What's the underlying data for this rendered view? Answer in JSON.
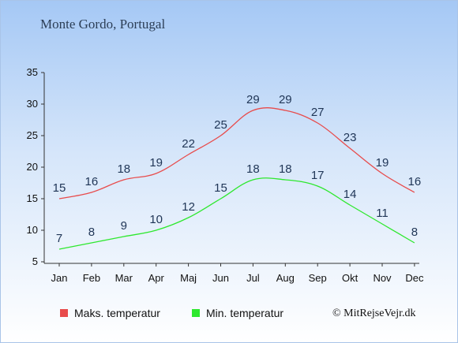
{
  "title": "Monte Gordo, Portugal",
  "copyright": "© MitRejseVejr.dk",
  "chart_data": {
    "type": "line",
    "categories": [
      "Jan",
      "Feb",
      "Mar",
      "Apr",
      "Maj",
      "Jun",
      "Jul",
      "Aug",
      "Sep",
      "Okt",
      "Nov",
      "Dec"
    ],
    "series": [
      {
        "name": "Maks. temperatur",
        "color": "#e84b4b",
        "values": [
          15,
          16,
          18,
          19,
          22,
          25,
          29,
          29,
          27,
          23,
          19,
          16
        ]
      },
      {
        "name": "Min. temperatur",
        "color": "#2ee82e",
        "values": [
          7,
          8,
          9,
          10,
          12,
          15,
          18,
          18,
          17,
          14,
          11,
          8
        ]
      }
    ],
    "yticks": [
      5,
      10,
      15,
      20,
      25,
      30,
      35
    ],
    "ylim": [
      5,
      35
    ],
    "grid": false,
    "legend": "bottom"
  }
}
